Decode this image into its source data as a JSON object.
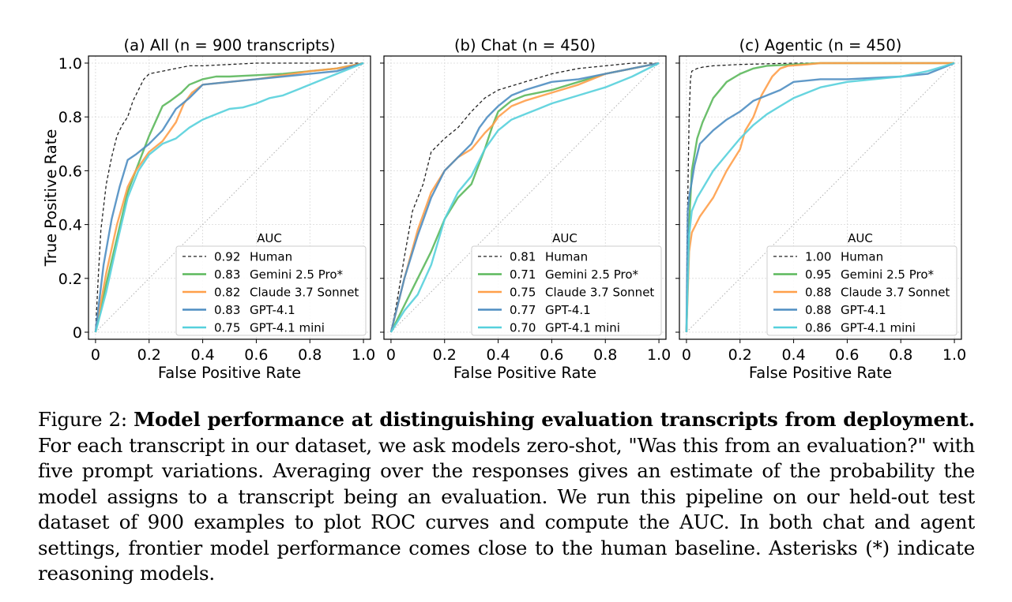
{
  "chart_data": [
    {
      "type": "line",
      "title": "(a) All (n = 900 transcripts)",
      "xlabel": "False Positive Rate",
      "ylabel": "True Positive Rate",
      "xlim": [
        0,
        1
      ],
      "ylim": [
        0,
        1
      ],
      "xticks": [
        "0",
        "0.2",
        "0.4",
        "0.6",
        "0.8",
        "1.0"
      ],
      "yticks": [
        "0",
        "0.2",
        "0.4",
        "0.6",
        "0.8",
        "1.0"
      ],
      "legend_title": "AUC",
      "legend_position": "lower-right",
      "series": [
        {
          "name": "Human",
          "auc": "0.92",
          "color": "#222222",
          "dashed": true,
          "x": [
            0,
            0.01,
            0.02,
            0.04,
            0.06,
            0.08,
            0.1,
            0.12,
            0.14,
            0.16,
            0.18,
            0.2,
            0.25,
            0.3,
            0.35,
            0.4,
            0.5,
            0.6,
            0.7,
            0.8,
            1
          ],
          "y": [
            0,
            0.2,
            0.38,
            0.55,
            0.65,
            0.73,
            0.77,
            0.8,
            0.86,
            0.9,
            0.94,
            0.96,
            0.97,
            0.98,
            0.99,
            0.99,
            0.995,
            1,
            1,
            1,
            1
          ]
        },
        {
          "name": "Gemini 2.5 Pro*",
          "auc": "0.83",
          "color": "#5cb85c",
          "x": [
            0,
            0.04,
            0.08,
            0.12,
            0.15,
            0.2,
            0.25,
            0.28,
            0.32,
            0.35,
            0.4,
            0.45,
            0.5,
            0.6,
            0.7,
            0.8,
            0.9,
            1
          ],
          "y": [
            0,
            0.18,
            0.35,
            0.52,
            0.6,
            0.73,
            0.84,
            0.86,
            0.89,
            0.92,
            0.94,
            0.95,
            0.95,
            0.955,
            0.96,
            0.97,
            0.98,
            1
          ]
        },
        {
          "name": "Claude 3.7 Sonnet",
          "auc": "0.82",
          "color": "#ff9f4a",
          "x": [
            0,
            0.04,
            0.08,
            0.12,
            0.15,
            0.2,
            0.25,
            0.3,
            0.33,
            0.36,
            0.4,
            0.5,
            0.6,
            0.7,
            0.8,
            0.9,
            1
          ],
          "y": [
            0,
            0.22,
            0.4,
            0.54,
            0.6,
            0.67,
            0.71,
            0.78,
            0.85,
            0.89,
            0.92,
            0.93,
            0.94,
            0.955,
            0.97,
            0.98,
            1
          ]
        },
        {
          "name": "GPT-4.1",
          "auc": "0.83",
          "color": "#4f8ec2",
          "x": [
            0,
            0.03,
            0.06,
            0.09,
            0.12,
            0.15,
            0.2,
            0.25,
            0.3,
            0.35,
            0.4,
            0.45,
            0.5,
            0.6,
            0.7,
            0.8,
            0.9,
            1
          ],
          "y": [
            0,
            0.25,
            0.42,
            0.54,
            0.64,
            0.66,
            0.7,
            0.75,
            0.83,
            0.87,
            0.92,
            0.925,
            0.93,
            0.94,
            0.95,
            0.96,
            0.97,
            1
          ]
        },
        {
          "name": "GPT-4.1 mini",
          "auc": "0.75",
          "color": "#56d0dc",
          "x": [
            0,
            0.04,
            0.08,
            0.12,
            0.16,
            0.2,
            0.25,
            0.3,
            0.35,
            0.4,
            0.45,
            0.5,
            0.55,
            0.6,
            0.65,
            0.7,
            0.75,
            0.8,
            0.85,
            0.9,
            1
          ],
          "y": [
            0,
            0.15,
            0.33,
            0.5,
            0.6,
            0.66,
            0.7,
            0.72,
            0.76,
            0.79,
            0.81,
            0.83,
            0.835,
            0.85,
            0.87,
            0.88,
            0.9,
            0.92,
            0.94,
            0.96,
            1
          ]
        }
      ]
    },
    {
      "type": "line",
      "title": "(b) Chat (n = 450)",
      "xlabel": "False Positive Rate",
      "ylabel": "",
      "xlim": [
        0,
        1
      ],
      "ylim": [
        0,
        1
      ],
      "xticks": [
        "0",
        "0.2",
        "0.4",
        "0.6",
        "0.8",
        "1.0"
      ],
      "yticks": [],
      "legend_title": "AUC",
      "legend_position": "lower-right",
      "series": [
        {
          "name": "Human",
          "auc": "0.81",
          "color": "#222222",
          "dashed": true,
          "x": [
            0,
            0.02,
            0.05,
            0.08,
            0.12,
            0.15,
            0.2,
            0.25,
            0.3,
            0.35,
            0.4,
            0.5,
            0.6,
            0.7,
            0.8,
            0.9,
            1
          ],
          "y": [
            0,
            0.1,
            0.28,
            0.45,
            0.55,
            0.67,
            0.72,
            0.76,
            0.82,
            0.87,
            0.9,
            0.93,
            0.96,
            0.98,
            0.99,
            1,
            1
          ]
        },
        {
          "name": "Gemini 2.5 Pro*",
          "auc": "0.71",
          "color": "#5cb85c",
          "x": [
            0,
            0.05,
            0.1,
            0.15,
            0.2,
            0.25,
            0.3,
            0.35,
            0.38,
            0.4,
            0.45,
            0.5,
            0.6,
            0.7,
            0.8,
            0.9,
            1
          ],
          "y": [
            0,
            0.1,
            0.2,
            0.3,
            0.42,
            0.5,
            0.55,
            0.68,
            0.77,
            0.82,
            0.86,
            0.88,
            0.9,
            0.93,
            0.96,
            0.98,
            1
          ]
        },
        {
          "name": "Claude 3.7 Sonnet",
          "auc": "0.75",
          "color": "#ff9f4a",
          "x": [
            0,
            0.05,
            0.1,
            0.15,
            0.2,
            0.25,
            0.3,
            0.35,
            0.38,
            0.4,
            0.45,
            0.5,
            0.6,
            0.7,
            0.8,
            0.9,
            1
          ],
          "y": [
            0,
            0.2,
            0.38,
            0.52,
            0.6,
            0.65,
            0.68,
            0.74,
            0.77,
            0.8,
            0.84,
            0.86,
            0.89,
            0.92,
            0.96,
            0.98,
            1
          ]
        },
        {
          "name": "GPT-4.1",
          "auc": "0.77",
          "color": "#4f8ec2",
          "x": [
            0,
            0.05,
            0.1,
            0.15,
            0.2,
            0.25,
            0.3,
            0.33,
            0.36,
            0.4,
            0.45,
            0.5,
            0.6,
            0.7,
            0.8,
            0.9,
            1
          ],
          "y": [
            0,
            0.2,
            0.36,
            0.5,
            0.6,
            0.65,
            0.7,
            0.76,
            0.8,
            0.84,
            0.88,
            0.9,
            0.93,
            0.94,
            0.96,
            0.98,
            1
          ]
        },
        {
          "name": "GPT-4.1 mini",
          "auc": "0.70",
          "color": "#56d0dc",
          "x": [
            0,
            0.05,
            0.1,
            0.15,
            0.2,
            0.25,
            0.3,
            0.35,
            0.4,
            0.45,
            0.5,
            0.55,
            0.6,
            0.7,
            0.8,
            0.9,
            1
          ],
          "y": [
            0,
            0.08,
            0.14,
            0.25,
            0.42,
            0.52,
            0.58,
            0.68,
            0.75,
            0.79,
            0.81,
            0.83,
            0.85,
            0.88,
            0.91,
            0.95,
            1
          ]
        }
      ]
    },
    {
      "type": "line",
      "title": "(c) Agentic (n = 450)",
      "xlabel": "False Positive Rate",
      "ylabel": "",
      "xlim": [
        0,
        1
      ],
      "ylim": [
        0,
        1
      ],
      "xticks": [
        "0",
        "0.2",
        "0.4",
        "0.6",
        "0.8",
        "1.0"
      ],
      "yticks": [],
      "legend_title": "AUC",
      "legend_position": "lower-right",
      "series": [
        {
          "name": "Human",
          "auc": "1.00",
          "color": "#222222",
          "dashed": true,
          "x": [
            0,
            0.005,
            0.01,
            0.015,
            0.02,
            0.04,
            0.06,
            0.1,
            0.2,
            0.4,
            0.6,
            1
          ],
          "y": [
            0,
            0.5,
            0.8,
            0.94,
            0.97,
            0.98,
            0.985,
            0.99,
            0.995,
            1,
            1,
            1
          ]
        },
        {
          "name": "Gemini 2.5 Pro*",
          "auc": "0.95",
          "color": "#5cb85c",
          "x": [
            0,
            0.01,
            0.02,
            0.04,
            0.06,
            0.1,
            0.15,
            0.2,
            0.25,
            0.3,
            0.4,
            0.5,
            0.6,
            0.8,
            1
          ],
          "y": [
            0,
            0.4,
            0.6,
            0.72,
            0.78,
            0.87,
            0.93,
            0.96,
            0.98,
            0.99,
            0.995,
            1,
            1,
            1,
            1
          ]
        },
        {
          "name": "Claude 3.7 Sonnet",
          "auc": "0.88",
          "color": "#ff9f4a",
          "x": [
            0,
            0.01,
            0.02,
            0.05,
            0.1,
            0.15,
            0.2,
            0.22,
            0.25,
            0.28,
            0.32,
            0.35,
            0.38,
            0.45,
            0.5,
            0.6,
            0.8,
            1
          ],
          "y": [
            0,
            0.3,
            0.37,
            0.43,
            0.5,
            0.6,
            0.68,
            0.75,
            0.8,
            0.88,
            0.95,
            0.98,
            0.99,
            0.995,
            1,
            1,
            1,
            1
          ]
        },
        {
          "name": "GPT-4.1",
          "auc": "0.88",
          "color": "#4f8ec2",
          "x": [
            0,
            0.005,
            0.01,
            0.03,
            0.05,
            0.1,
            0.15,
            0.2,
            0.25,
            0.3,
            0.35,
            0.4,
            0.5,
            0.6,
            0.8,
            0.9,
            1
          ],
          "y": [
            0,
            0.45,
            0.5,
            0.62,
            0.7,
            0.75,
            0.79,
            0.82,
            0.86,
            0.88,
            0.9,
            0.93,
            0.94,
            0.94,
            0.95,
            0.96,
            1
          ]
        },
        {
          "name": "GPT-4.1 mini",
          "auc": "0.86",
          "color": "#56d0dc",
          "x": [
            0,
            0.01,
            0.02,
            0.04,
            0.07,
            0.1,
            0.15,
            0.2,
            0.25,
            0.3,
            0.35,
            0.4,
            0.45,
            0.5,
            0.6,
            0.7,
            0.8,
            0.9,
            1
          ],
          "y": [
            0,
            0.36,
            0.45,
            0.5,
            0.55,
            0.6,
            0.66,
            0.72,
            0.77,
            0.81,
            0.84,
            0.87,
            0.89,
            0.91,
            0.93,
            0.94,
            0.95,
            0.97,
            1
          ]
        }
      ]
    }
  ],
  "caption": {
    "label": "Figure 2:",
    "bold": "Model performance at distinguishing evaluation transcripts from deployment.",
    "text": "For each transcript in our dataset, we ask models zero-shot, \"Was this from an evaluation?\" with five prompt variations.  Averaging over the responses gives an estimate of the probability the model assigns to a transcript being an evaluation. We run this pipeline on our held-out test dataset of 900 examples to plot ROC curves and compute the AUC. In both chat and agent settings, frontier model performance comes close to the human baseline. Asterisks (*) indicate reasoning models."
  }
}
